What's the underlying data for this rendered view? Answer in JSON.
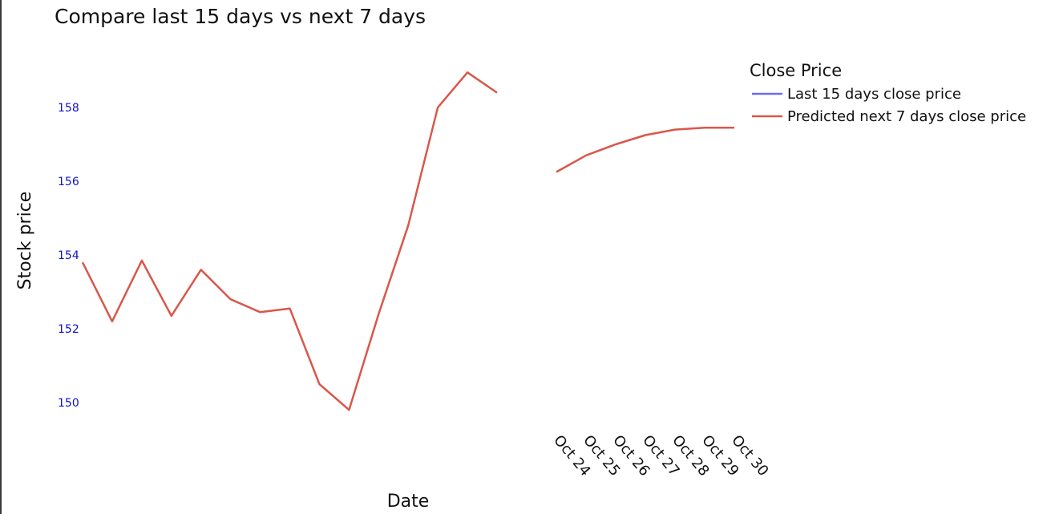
{
  "chart_data": {
    "type": "line",
    "title": "Compare last 15 days vs next 7 days",
    "xlabel": "Date",
    "ylabel": "Stock price",
    "ylim": [
      148.6,
      160.8
    ],
    "yticks": [
      150,
      152,
      154,
      156,
      158
    ],
    "x_tick_labels": [
      "Oct 24",
      "Oct 25",
      "Oct 26",
      "Oct 27",
      "Oct 28",
      "Oct 29",
      "Oct 30"
    ],
    "legend": {
      "title": "Close Price",
      "placement": "top-right"
    },
    "series": [
      {
        "name": "Last 15 days close price",
        "color": "#6d6dea",
        "values": []
      },
      {
        "name": "Predicted next 7 days close price",
        "color": "#d9574a",
        "segments": [
          [
            153.8,
            152.2,
            153.85,
            152.35,
            153.6,
            152.8,
            152.45,
            152.55,
            150.5,
            149.8,
            152.4,
            154.8,
            158.0,
            158.95,
            158.4
          ],
          [
            156.25,
            156.7,
            157.0,
            157.25,
            157.4,
            157.45,
            157.45
          ]
        ]
      }
    ]
  }
}
